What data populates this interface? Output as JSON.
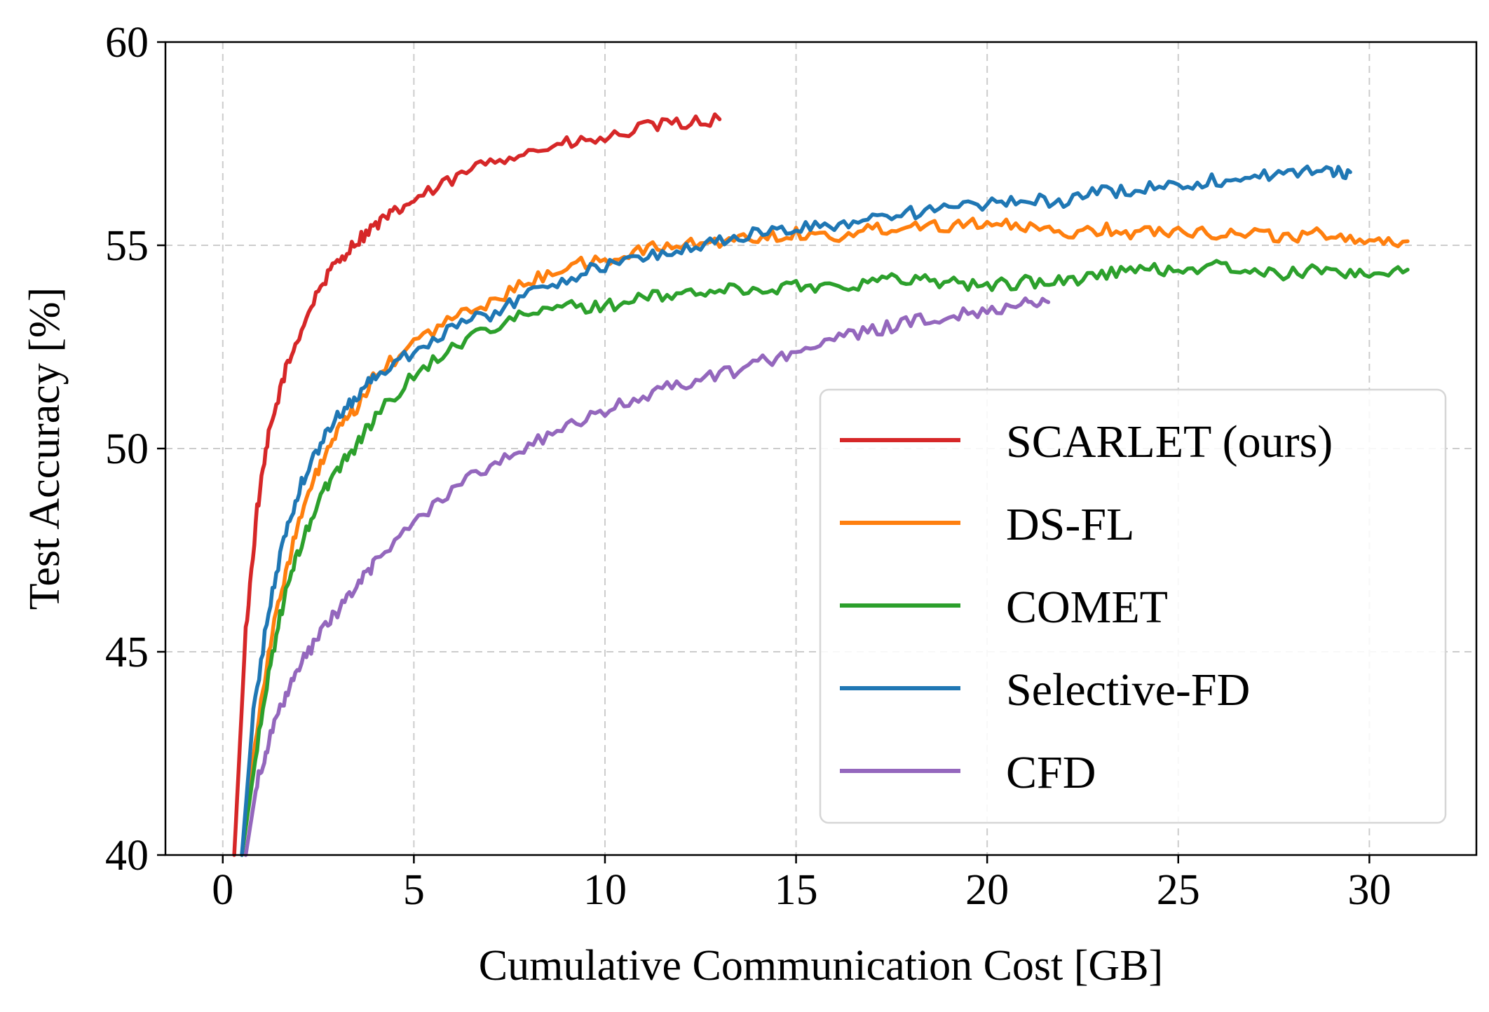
{
  "chart_data": {
    "type": "line",
    "xlabel": "Cumulative Communication Cost [GB]",
    "ylabel": "Test Accuracy [%]",
    "xlim": [
      -1.5,
      32.8
    ],
    "ylim": [
      40,
      60
    ],
    "xticks": [
      0,
      5,
      10,
      15,
      20,
      25,
      30
    ],
    "yticks": [
      40,
      45,
      50,
      55,
      60
    ],
    "grid": true,
    "legend_position": "lower-right",
    "series": [
      {
        "name": "SCARLET (ours)",
        "color": "#d62728",
        "x": [
          0.3,
          0.6,
          0.9,
          1.2,
          1.6,
          2.0,
          2.5,
          3.0,
          3.5,
          4.0,
          4.5,
          5.0,
          6.0,
          7.0,
          8.0,
          9.0,
          10.0,
          11.0,
          12.0,
          13.0
        ],
        "y": [
          40.0,
          45.5,
          48.5,
          50.3,
          51.8,
          52.8,
          53.9,
          54.6,
          55.1,
          55.5,
          55.8,
          56.1,
          56.6,
          57.1,
          57.3,
          57.5,
          57.6,
          57.9,
          58.0,
          58.1
        ]
      },
      {
        "name": "DS-FL",
        "color": "#ff7f0e",
        "x": [
          0.5,
          0.8,
          1.2,
          1.6,
          2.0,
          2.5,
          3.0,
          3.5,
          4.0,
          5.0,
          6.0,
          7.0,
          8.0,
          9.0,
          10.0,
          11.0,
          12.0,
          13.0,
          14.0,
          15.0,
          16.0,
          17.0,
          18.0,
          19.0,
          20.0,
          21.0,
          22.0,
          23.0,
          24.0,
          25.0,
          26.0,
          27.0,
          28.0,
          29.0,
          30.0,
          31.0
        ],
        "y": [
          40.0,
          42.5,
          45.0,
          46.8,
          48.2,
          49.5,
          50.4,
          51.0,
          51.8,
          52.6,
          53.2,
          53.6,
          54.1,
          54.5,
          54.6,
          54.9,
          55.0,
          55.1,
          55.2,
          55.3,
          55.2,
          55.4,
          55.5,
          55.5,
          55.6,
          55.4,
          55.3,
          55.4,
          55.3,
          55.4,
          55.3,
          55.3,
          55.2,
          55.3,
          55.1,
          55.1
        ]
      },
      {
        "name": "COMET",
        "color": "#2ca02c",
        "x": [
          0.5,
          0.8,
          1.2,
          1.6,
          2.0,
          2.5,
          3.0,
          3.5,
          4.0,
          5.0,
          6.0,
          7.0,
          8.0,
          9.0,
          10.0,
          11.0,
          12.0,
          13.0,
          14.0,
          15.0,
          16.0,
          17.0,
          18.0,
          19.0,
          20.0,
          21.0,
          22.0,
          23.0,
          24.0,
          25.0,
          26.0,
          27.0,
          28.0,
          29.0,
          30.0,
          31.0
        ],
        "y": [
          40.0,
          42.0,
          44.5,
          46.3,
          47.5,
          48.7,
          49.5,
          50.1,
          50.8,
          51.8,
          52.5,
          53.0,
          53.3,
          53.5,
          53.5,
          53.7,
          53.8,
          53.9,
          53.9,
          54.0,
          54.0,
          54.1,
          54.2,
          54.1,
          54.0,
          54.1,
          54.1,
          54.3,
          54.4,
          54.4,
          54.5,
          54.3,
          54.3,
          54.4,
          54.3,
          54.4
        ]
      },
      {
        "name": "Selective-FD",
        "color": "#1f77b4",
        "x": [
          0.5,
          0.8,
          1.2,
          1.6,
          2.0,
          2.5,
          3.0,
          3.5,
          4.0,
          5.0,
          6.0,
          7.0,
          8.0,
          9.0,
          10.0,
          11.0,
          12.0,
          13.0,
          14.0,
          15.0,
          16.0,
          17.0,
          18.0,
          19.0,
          20.0,
          21.0,
          22.0,
          23.0,
          24.0,
          25.0,
          26.0,
          27.0,
          28.0,
          29.0,
          29.5
        ],
        "y": [
          40.0,
          43.5,
          46.0,
          47.8,
          49.0,
          50.0,
          50.8,
          51.3,
          51.8,
          52.4,
          53.0,
          53.3,
          53.8,
          54.2,
          54.5,
          54.7,
          54.9,
          55.1,
          55.3,
          55.4,
          55.5,
          55.7,
          55.8,
          55.9,
          56.0,
          56.1,
          56.1,
          56.3,
          56.4,
          56.5,
          56.6,
          56.7,
          56.8,
          56.8,
          56.8
        ]
      },
      {
        "name": "CFD",
        "color": "#9467bd",
        "x": [
          0.6,
          0.9,
          1.2,
          1.6,
          2.0,
          2.5,
          3.0,
          3.5,
          4.0,
          5.0,
          6.0,
          7.0,
          8.0,
          9.0,
          10.0,
          11.0,
          12.0,
          13.0,
          14.0,
          15.0,
          16.0,
          17.0,
          18.0,
          19.0,
          20.0,
          21.0,
          21.6
        ],
        "y": [
          40.0,
          41.8,
          42.8,
          43.8,
          44.6,
          45.4,
          46.0,
          46.6,
          47.2,
          48.2,
          49.0,
          49.6,
          50.1,
          50.5,
          50.9,
          51.3,
          51.6,
          51.8,
          52.1,
          52.4,
          52.7,
          52.9,
          53.1,
          53.3,
          53.4,
          53.6,
          53.6
        ]
      }
    ]
  }
}
